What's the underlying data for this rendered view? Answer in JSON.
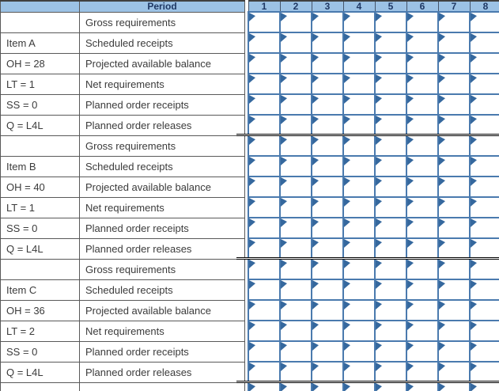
{
  "period": {
    "label": "Period",
    "columns": [
      "1",
      "2",
      "3",
      "4",
      "5",
      "6",
      "7",
      "8"
    ]
  },
  "row_labels": [
    "Gross requirements",
    "Scheduled receipts",
    "Projected available balance",
    "Net requirements",
    "Planned order receipts",
    "Planned order releases"
  ],
  "items": [
    {
      "name": "Item A",
      "on_hand": "OH = 28",
      "lead_time": "LT = 1",
      "safety_stock": "SS = 0",
      "lot_size": "Q = L4L"
    },
    {
      "name": "Item B",
      "on_hand": "OH = 40",
      "lead_time": "LT = 1",
      "safety_stock": "SS = 0",
      "lot_size": "Q = L4L"
    },
    {
      "name": "Item C",
      "on_hand": "OH = 36",
      "lead_time": "LT = 2",
      "safety_stock": "SS = 0",
      "lot_size": "Q = L4L"
    }
  ],
  "left_rows": [
    {
      "info": "",
      "label": "Gross requirements"
    },
    {
      "info": "Item A",
      "label": "Scheduled receipts"
    },
    {
      "info": "OH = 28",
      "label": "Projected available balance"
    },
    {
      "info": "LT = 1",
      "label": "Net requirements"
    },
    {
      "info": "SS = 0",
      "label": "Planned order receipts"
    },
    {
      "info": "Q = L4L",
      "label": "Planned order releases"
    },
    {
      "info": "",
      "label": "Gross requirements"
    },
    {
      "info": "Item B",
      "label": "Scheduled receipts"
    },
    {
      "info": "OH = 40",
      "label": "Projected available balance"
    },
    {
      "info": "LT = 1",
      "label": "Net requirements"
    },
    {
      "info": "SS = 0",
      "label": "Planned order receipts"
    },
    {
      "info": "Q = L4L",
      "label": "Planned order releases"
    },
    {
      "info": "",
      "label": "Gross requirements"
    },
    {
      "info": "Item C",
      "label": "Scheduled receipts"
    },
    {
      "info": "OH = 36",
      "label": "Projected available balance"
    },
    {
      "info": "LT = 2",
      "label": "Net requirements"
    },
    {
      "info": "SS = 0",
      "label": "Planned order receipts"
    },
    {
      "info": "Q = L4L",
      "label": "Planned order releases"
    },
    {
      "info": "",
      "label": ""
    }
  ],
  "grid": {
    "columns": 8,
    "total_rows": 19,
    "cell_marker": "flag-triangle"
  },
  "colors": {
    "header_bg": "#9CC2E5",
    "header_text": "#1F3864",
    "header_divider": "#44546A",
    "label_border": "#595959",
    "label_text": "#3B3B3B",
    "grid_border": "#4A7AAE",
    "flag": "#35689E",
    "separator": "#000000",
    "top_border": "#404040"
  }
}
